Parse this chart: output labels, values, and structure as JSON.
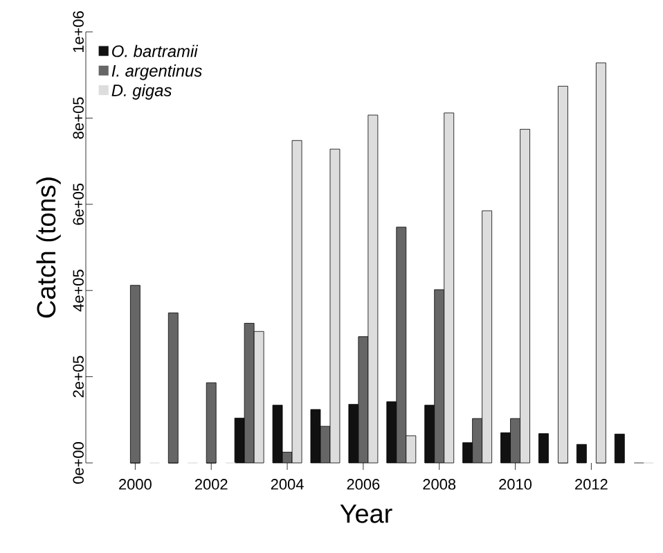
{
  "chart_data": {
    "type": "bar",
    "xlabel": "Year",
    "ylabel": "Catch (tons)",
    "categories": [
      "2000",
      null,
      "2002",
      null,
      "2004",
      null,
      "2006",
      null,
      "2008",
      null,
      "2010",
      null,
      "2012",
      null
    ],
    "series": [
      {
        "name": "O. bartramii",
        "color": "#111111",
        "values": [
          0,
          0,
          0,
          104000,
          134000,
          124000,
          136000,
          142000,
          134000,
          47000,
          70000,
          68000,
          43000,
          67000
        ]
      },
      {
        "name": "I. argentinus",
        "color": "#666666",
        "values": [
          412000,
          348000,
          186000,
          324000,
          25000,
          85000,
          293000,
          547000,
          402000,
          103000,
          103000,
          0,
          0,
          0
        ]
      },
      {
        "name": "D. gigas",
        "color": "#dddddd",
        "values": [
          0,
          0,
          0,
          305000,
          748000,
          728000,
          807000,
          63000,
          812000,
          585000,
          774000,
          874000,
          928000,
          0
        ]
      }
    ],
    "ylim": [
      0,
      1000000
    ],
    "yticks": [
      {
        "value": 0,
        "label": "0e+00"
      },
      {
        "value": 200000,
        "label": "2e+05"
      },
      {
        "value": 400000,
        "label": "4e+05"
      },
      {
        "value": 600000,
        "label": "6e+05"
      },
      {
        "value": 800000,
        "label": "8e+05"
      },
      {
        "value": 1000000,
        "label": "1e+06"
      }
    ],
    "legend": "top left",
    "grid": false
  }
}
